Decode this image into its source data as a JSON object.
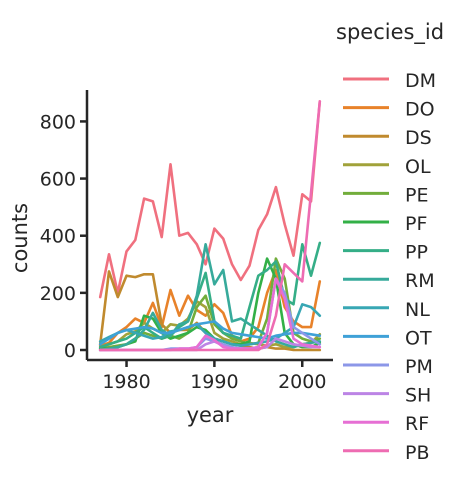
{
  "chart_data": {
    "type": "line",
    "xlabel": "year",
    "ylabel": "counts",
    "xlim": [
      1975.5,
      2003.5
    ],
    "ylim": [
      -35,
      910
    ],
    "xticks": [
      1980,
      1990,
      2000
    ],
    "yticks": [
      0,
      200,
      400,
      600,
      800
    ],
    "grid": false,
    "legend": {
      "title": "species_id",
      "placement": "right"
    },
    "x": [
      1977,
      1978,
      1979,
      1980,
      1981,
      1982,
      1983,
      1984,
      1985,
      1986,
      1987,
      1988,
      1989,
      1990,
      1991,
      1992,
      1993,
      1994,
      1995,
      1996,
      1997,
      1998,
      1999,
      2000,
      2001,
      2002
    ],
    "series": [
      {
        "name": "DM",
        "color": "#f0707f",
        "values": [
          185,
          335,
          200,
          345,
          385,
          530,
          520,
          395,
          650,
          400,
          410,
          370,
          300,
          425,
          390,
          300,
          245,
          295,
          420,
          475,
          570,
          440,
          330,
          545,
          520,
          870
        ]
      },
      {
        "name": "DO",
        "color": "#e8822a",
        "values": [
          15,
          25,
          60,
          80,
          110,
          95,
          165,
          80,
          210,
          120,
          190,
          140,
          120,
          160,
          130,
          50,
          30,
          40,
          80,
          200,
          280,
          150,
          100,
          80,
          80,
          240
        ]
      },
      {
        "name": "DS",
        "color": "#c08a2e",
        "values": [
          20,
          275,
          185,
          260,
          255,
          265,
          265,
          90,
          60,
          70,
          70,
          95,
          60,
          40,
          30,
          20,
          15,
          10,
          5,
          10,
          5,
          5,
          0,
          0,
          0,
          0
        ]
      },
      {
        "name": "OL",
        "color": "#a1a23a",
        "values": [
          10,
          20,
          30,
          55,
          65,
          95,
          75,
          60,
          90,
          85,
          110,
          170,
          150,
          60,
          40,
          30,
          20,
          25,
          20,
          15,
          20,
          10,
          10,
          20,
          25,
          55
        ]
      },
      {
        "name": "PE",
        "color": "#72ad3b",
        "values": [
          5,
          10,
          15,
          20,
          40,
          60,
          50,
          40,
          50,
          40,
          60,
          150,
          190,
          90,
          60,
          40,
          30,
          20,
          25,
          110,
          320,
          250,
          60,
          40,
          30,
          40
        ]
      },
      {
        "name": "PF",
        "color": "#33b047",
        "values": [
          5,
          5,
          10,
          20,
          30,
          120,
          110,
          60,
          40,
          50,
          60,
          80,
          70,
          40,
          30,
          20,
          20,
          30,
          200,
          320,
          250,
          60,
          20,
          10,
          10,
          25
        ]
      },
      {
        "name": "PP",
        "color": "#35ae87",
        "values": [
          10,
          20,
          30,
          40,
          60,
          80,
          60,
          40,
          50,
          80,
          100,
          180,
          270,
          100,
          60,
          50,
          40,
          150,
          260,
          280,
          310,
          180,
          160,
          370,
          260,
          375
        ]
      },
      {
        "name": "RM",
        "color": "#37aa9b",
        "values": [
          0,
          5,
          10,
          20,
          40,
          70,
          130,
          70,
          50,
          90,
          100,
          190,
          370,
          230,
          280,
          100,
          110,
          90,
          70,
          50,
          30,
          20,
          10,
          20,
          25,
          30
        ]
      },
      {
        "name": "NL",
        "color": "#38a7b4",
        "values": [
          30,
          45,
          60,
          70,
          60,
          50,
          40,
          45,
          65,
          70,
          80,
          90,
          60,
          40,
          30,
          20,
          15,
          20,
          25,
          30,
          40,
          60,
          80,
          160,
          150,
          120
        ]
      },
      {
        "name": "OT",
        "color": "#3fa1d7",
        "values": [
          20,
          40,
          60,
          70,
          75,
          80,
          75,
          60,
          60,
          70,
          80,
          90,
          95,
          100,
          75,
          60,
          55,
          50,
          45,
          40,
          50,
          55,
          60,
          60,
          55,
          50
        ]
      },
      {
        "name": "PM",
        "color": "#8c97e8",
        "values": [
          0,
          0,
          0,
          0,
          0,
          0,
          0,
          0,
          5,
          5,
          5,
          10,
          40,
          30,
          20,
          10,
          5,
          5,
          10,
          60,
          250,
          200,
          80,
          60,
          40,
          20
        ]
      },
      {
        "name": "SH",
        "color": "#bc84e5",
        "values": [
          0,
          0,
          0,
          0,
          0,
          0,
          0,
          0,
          0,
          0,
          0,
          0,
          20,
          30,
          15,
          5,
          5,
          5,
          5,
          10,
          40,
          30,
          20,
          15,
          10,
          10
        ]
      },
      {
        "name": "RF",
        "color": "#e66fd4",
        "values": [
          0,
          0,
          0,
          0,
          0,
          0,
          0,
          0,
          0,
          5,
          5,
          10,
          50,
          35,
          10,
          5,
          5,
          5,
          10,
          60,
          250,
          180,
          40,
          20,
          15,
          10
        ]
      },
      {
        "name": "PB",
        "color": "#ee6cb2",
        "values": [
          0,
          0,
          0,
          0,
          0,
          0,
          0,
          0,
          0,
          0,
          0,
          0,
          0,
          0,
          0,
          0,
          0,
          0,
          0,
          20,
          120,
          300,
          270,
          240,
          550,
          870
        ]
      }
    ]
  }
}
